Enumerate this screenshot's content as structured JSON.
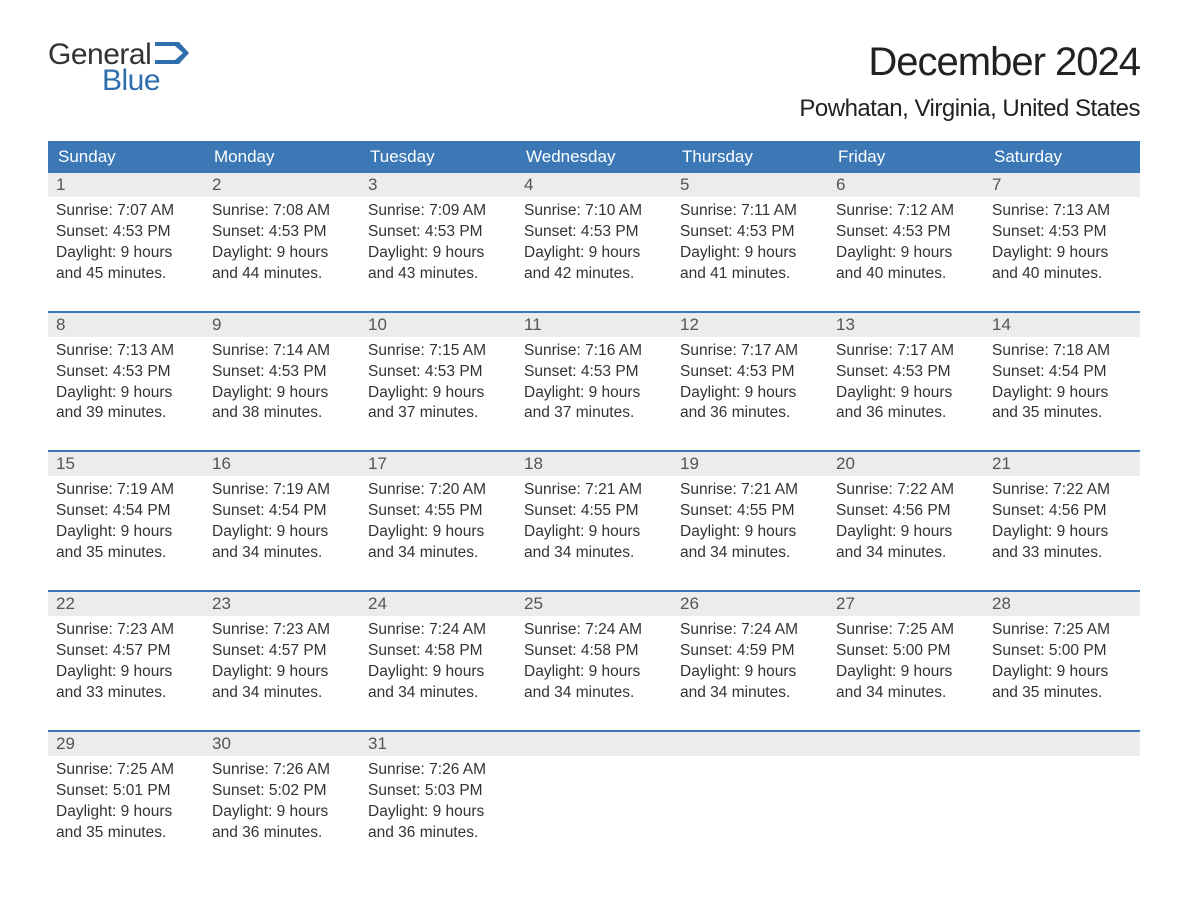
{
  "logo": {
    "word1": "General",
    "word2": "Blue",
    "word1_color": "#333333",
    "word2_color": "#2f6fad",
    "flag_color": "#2f6fad"
  },
  "title": {
    "month": "December 2024",
    "location": "Powhatan, Virginia, United States"
  },
  "colors": {
    "header_bg": "#3b78b5",
    "header_text": "#ffffff",
    "daynum_bg": "#ececec",
    "separator": "#3b78b5",
    "body_text": "#333333",
    "background": "#ffffff"
  },
  "fonts": {
    "title_size_pt": 30,
    "location_size_pt": 18,
    "dayhead_size_pt": 13,
    "body_size_pt": 12
  },
  "day_headers": [
    "Sunday",
    "Monday",
    "Tuesday",
    "Wednesday",
    "Thursday",
    "Friday",
    "Saturday"
  ],
  "weeks": [
    [
      {
        "n": "1",
        "sr": "Sunrise: 7:07 AM",
        "ss": "Sunset: 4:53 PM",
        "d1": "Daylight: 9 hours",
        "d2": "and 45 minutes."
      },
      {
        "n": "2",
        "sr": "Sunrise: 7:08 AM",
        "ss": "Sunset: 4:53 PM",
        "d1": "Daylight: 9 hours",
        "d2": "and 44 minutes."
      },
      {
        "n": "3",
        "sr": "Sunrise: 7:09 AM",
        "ss": "Sunset: 4:53 PM",
        "d1": "Daylight: 9 hours",
        "d2": "and 43 minutes."
      },
      {
        "n": "4",
        "sr": "Sunrise: 7:10 AM",
        "ss": "Sunset: 4:53 PM",
        "d1": "Daylight: 9 hours",
        "d2": "and 42 minutes."
      },
      {
        "n": "5",
        "sr": "Sunrise: 7:11 AM",
        "ss": "Sunset: 4:53 PM",
        "d1": "Daylight: 9 hours",
        "d2": "and 41 minutes."
      },
      {
        "n": "6",
        "sr": "Sunrise: 7:12 AM",
        "ss": "Sunset: 4:53 PM",
        "d1": "Daylight: 9 hours",
        "d2": "and 40 minutes."
      },
      {
        "n": "7",
        "sr": "Sunrise: 7:13 AM",
        "ss": "Sunset: 4:53 PM",
        "d1": "Daylight: 9 hours",
        "d2": "and 40 minutes."
      }
    ],
    [
      {
        "n": "8",
        "sr": "Sunrise: 7:13 AM",
        "ss": "Sunset: 4:53 PM",
        "d1": "Daylight: 9 hours",
        "d2": "and 39 minutes."
      },
      {
        "n": "9",
        "sr": "Sunrise: 7:14 AM",
        "ss": "Sunset: 4:53 PM",
        "d1": "Daylight: 9 hours",
        "d2": "and 38 minutes."
      },
      {
        "n": "10",
        "sr": "Sunrise: 7:15 AM",
        "ss": "Sunset: 4:53 PM",
        "d1": "Daylight: 9 hours",
        "d2": "and 37 minutes."
      },
      {
        "n": "11",
        "sr": "Sunrise: 7:16 AM",
        "ss": "Sunset: 4:53 PM",
        "d1": "Daylight: 9 hours",
        "d2": "and 37 minutes."
      },
      {
        "n": "12",
        "sr": "Sunrise: 7:17 AM",
        "ss": "Sunset: 4:53 PM",
        "d1": "Daylight: 9 hours",
        "d2": "and 36 minutes."
      },
      {
        "n": "13",
        "sr": "Sunrise: 7:17 AM",
        "ss": "Sunset: 4:53 PM",
        "d1": "Daylight: 9 hours",
        "d2": "and 36 minutes."
      },
      {
        "n": "14",
        "sr": "Sunrise: 7:18 AM",
        "ss": "Sunset: 4:54 PM",
        "d1": "Daylight: 9 hours",
        "d2": "and 35 minutes."
      }
    ],
    [
      {
        "n": "15",
        "sr": "Sunrise: 7:19 AM",
        "ss": "Sunset: 4:54 PM",
        "d1": "Daylight: 9 hours",
        "d2": "and 35 minutes."
      },
      {
        "n": "16",
        "sr": "Sunrise: 7:19 AM",
        "ss": "Sunset: 4:54 PM",
        "d1": "Daylight: 9 hours",
        "d2": "and 34 minutes."
      },
      {
        "n": "17",
        "sr": "Sunrise: 7:20 AM",
        "ss": "Sunset: 4:55 PM",
        "d1": "Daylight: 9 hours",
        "d2": "and 34 minutes."
      },
      {
        "n": "18",
        "sr": "Sunrise: 7:21 AM",
        "ss": "Sunset: 4:55 PM",
        "d1": "Daylight: 9 hours",
        "d2": "and 34 minutes."
      },
      {
        "n": "19",
        "sr": "Sunrise: 7:21 AM",
        "ss": "Sunset: 4:55 PM",
        "d1": "Daylight: 9 hours",
        "d2": "and 34 minutes."
      },
      {
        "n": "20",
        "sr": "Sunrise: 7:22 AM",
        "ss": "Sunset: 4:56 PM",
        "d1": "Daylight: 9 hours",
        "d2": "and 34 minutes."
      },
      {
        "n": "21",
        "sr": "Sunrise: 7:22 AM",
        "ss": "Sunset: 4:56 PM",
        "d1": "Daylight: 9 hours",
        "d2": "and 33 minutes."
      }
    ],
    [
      {
        "n": "22",
        "sr": "Sunrise: 7:23 AM",
        "ss": "Sunset: 4:57 PM",
        "d1": "Daylight: 9 hours",
        "d2": "and 33 minutes."
      },
      {
        "n": "23",
        "sr": "Sunrise: 7:23 AM",
        "ss": "Sunset: 4:57 PM",
        "d1": "Daylight: 9 hours",
        "d2": "and 34 minutes."
      },
      {
        "n": "24",
        "sr": "Sunrise: 7:24 AM",
        "ss": "Sunset: 4:58 PM",
        "d1": "Daylight: 9 hours",
        "d2": "and 34 minutes."
      },
      {
        "n": "25",
        "sr": "Sunrise: 7:24 AM",
        "ss": "Sunset: 4:58 PM",
        "d1": "Daylight: 9 hours",
        "d2": "and 34 minutes."
      },
      {
        "n": "26",
        "sr": "Sunrise: 7:24 AM",
        "ss": "Sunset: 4:59 PM",
        "d1": "Daylight: 9 hours",
        "d2": "and 34 minutes."
      },
      {
        "n": "27",
        "sr": "Sunrise: 7:25 AM",
        "ss": "Sunset: 5:00 PM",
        "d1": "Daylight: 9 hours",
        "d2": "and 34 minutes."
      },
      {
        "n": "28",
        "sr": "Sunrise: 7:25 AM",
        "ss": "Sunset: 5:00 PM",
        "d1": "Daylight: 9 hours",
        "d2": "and 35 minutes."
      }
    ],
    [
      {
        "n": "29",
        "sr": "Sunrise: 7:25 AM",
        "ss": "Sunset: 5:01 PM",
        "d1": "Daylight: 9 hours",
        "d2": "and 35 minutes."
      },
      {
        "n": "30",
        "sr": "Sunrise: 7:26 AM",
        "ss": "Sunset: 5:02 PM",
        "d1": "Daylight: 9 hours",
        "d2": "and 36 minutes."
      },
      {
        "n": "31",
        "sr": "Sunrise: 7:26 AM",
        "ss": "Sunset: 5:03 PM",
        "d1": "Daylight: 9 hours",
        "d2": "and 36 minutes."
      },
      null,
      null,
      null,
      null
    ]
  ]
}
